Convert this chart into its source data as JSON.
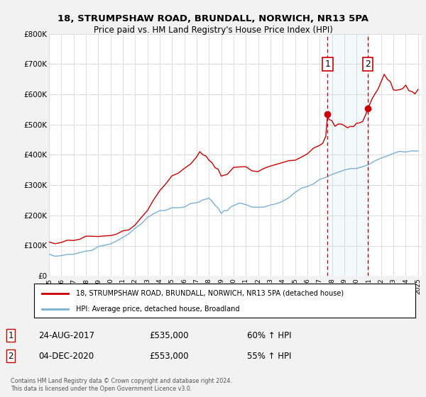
{
  "title": "18, STRUMPSHAW ROAD, BRUNDALL, NORWICH, NR13 5PA",
  "subtitle": "Price paid vs. HM Land Registry's House Price Index (HPI)",
  "background_color": "#f2f2f2",
  "plot_bg_color": "#ffffff",
  "red_line_color": "#cc0000",
  "blue_line_color": "#7ab0d4",
  "marker1_x": 2017.65,
  "marker2_x": 2020.92,
  "marker1_label": "1",
  "marker2_label": "2",
  "marker1_date": "24-AUG-2017",
  "marker1_price": "£535,000",
  "marker1_hpi": "60% ↑ HPI",
  "marker2_date": "04-DEC-2020",
  "marker2_price": "£553,000",
  "marker2_hpi": "55% ↑ HPI",
  "ylim_min": 0,
  "ylim_max": 800000,
  "legend_line1": "18, STRUMPSHAW ROAD, BRUNDALL, NORWICH, NR13 5PA (detached house)",
  "legend_line2": "HPI: Average price, detached house, Broadland",
  "footer": "Contains HM Land Registry data © Crown copyright and database right 2024.\nThis data is licensed under the Open Government Licence v3.0.",
  "yticks": [
    0,
    100000,
    200000,
    300000,
    400000,
    500000,
    600000,
    700000,
    800000
  ],
  "ytick_labels": [
    "£0",
    "£100K",
    "£200K",
    "£300K",
    "£400K",
    "£500K",
    "£600K",
    "£700K",
    "£800K"
  ],
  "xtick_years": [
    1995,
    1996,
    1997,
    1998,
    1999,
    2000,
    2001,
    2002,
    2003,
    2004,
    2005,
    2006,
    2007,
    2008,
    2009,
    2010,
    2011,
    2012,
    2013,
    2014,
    2015,
    2016,
    2017,
    2018,
    2019,
    2020,
    2021,
    2022,
    2023,
    2024,
    2025
  ]
}
